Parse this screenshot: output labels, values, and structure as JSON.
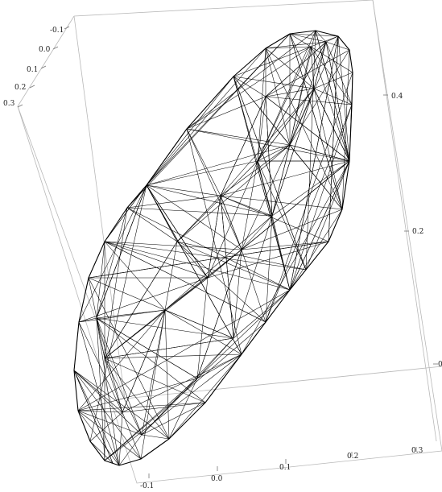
{
  "plot3d": {
    "type": "3d-wireframe-mesh",
    "boxed": true,
    "axis_left": {
      "ticks": [
        "-0.1",
        "0.0",
        "0.1",
        "0.2",
        "0.3"
      ]
    },
    "axis_right": {
      "ticks": [
        "0.4",
        "0.2",
        "0"
      ]
    },
    "axis_bottom": {
      "ticks": [
        "-0.1",
        "0.0",
        "0.1",
        "0.2",
        "0.3"
      ]
    }
  }
}
